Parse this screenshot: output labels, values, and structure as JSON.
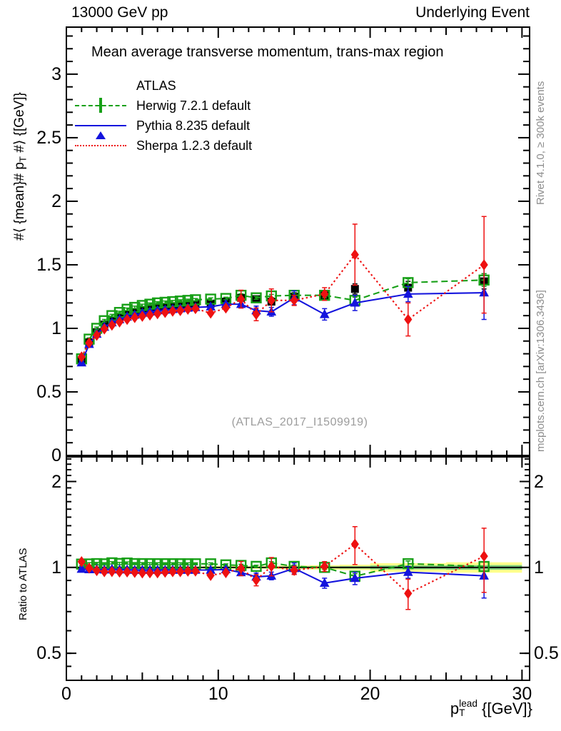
{
  "header": {
    "left": "13000 GeV pp",
    "right": "Underlying Event"
  },
  "panel_title": "Mean average transverse momentum, trans-max region",
  "watermark": "(ATLAS_2017_I1509919)",
  "side_notes": {
    "top_right": "Rivet 4.1.0, ≥ 300k events",
    "bottom_right": "mcplots.cern.ch [arXiv:1306.3436]"
  },
  "axis_labels": {
    "y_main": {
      "prefix": "#⟨ {mean}# p",
      "sub": "T",
      "suffix": " #⟩ {[GeV]}"
    },
    "y_ratio": "Ratio to ATLAS",
    "x": {
      "base": "p",
      "sup": "lead",
      "sub": "T",
      "suffix": " {[GeV]}"
    }
  },
  "legend": {
    "items": [
      {
        "label": "ATLAS",
        "color": "#000000",
        "marker": "square-filled",
        "line": "none"
      },
      {
        "label": "Herwig 7.2.1 default",
        "color": "#18a018",
        "marker": "square-open",
        "line": "dashed"
      },
      {
        "label": "Pythia 8.235 default",
        "color": "#1414dd",
        "marker": "triangle-filled",
        "line": "solid"
      },
      {
        "label": "Sherpa 1.2.3 default",
        "color": "#ee1111",
        "marker": "diamond-filled",
        "line": "dotted"
      }
    ]
  },
  "chart_data": {
    "type": "line",
    "title": "Mean average transverse momentum, trans-max region",
    "xlabel": "pT^lead [GeV]",
    "ylabel_main": "<mean pT> [GeV]",
    "ylabel_ratio": "Ratio to ATLAS",
    "x_axis": {
      "min": 0,
      "max": 30.5,
      "major_ticks": [
        0,
        10,
        20,
        30
      ],
      "medium_ticks": [
        5,
        15,
        25
      ],
      "minor_step": 1
    },
    "main_axis": {
      "min": 0,
      "max": 3.37,
      "major_ticks": [
        3,
        2.5,
        2,
        1.5,
        1,
        0.5,
        0
      ],
      "minor_step": 0.1,
      "scale": "linear"
    },
    "ratio_axis": {
      "min": 0.402,
      "max": 2.44,
      "major_ticks": [
        2,
        1,
        0.5
      ],
      "minor_ticks": [
        0.45,
        0.5,
        0.6,
        0.7,
        0.8,
        0.9,
        1.1,
        1.2,
        1.3,
        1.4,
        1.5,
        1.6,
        1.7,
        1.8,
        1.9,
        2.1,
        2.2,
        2.3,
        2.4
      ],
      "scale": "log"
    },
    "x": [
      1,
      1.5,
      2,
      2.5,
      3,
      3.5,
      4,
      4.5,
      5,
      5.5,
      6,
      6.5,
      7,
      7.5,
      8,
      8.5,
      9.5,
      10.5,
      11.5,
      12.5,
      13.5,
      15,
      17,
      19,
      22.5,
      27.5
    ],
    "bin_edges": [
      0.75,
      1.25,
      1.75,
      2.25,
      2.75,
      3.25,
      3.75,
      4.25,
      4.75,
      5.25,
      5.75,
      6.25,
      6.75,
      7.25,
      7.75,
      8.25,
      9,
      10,
      11,
      12,
      13,
      14,
      16,
      18,
      20,
      25,
      30
    ],
    "series": [
      {
        "name": "ATLAS",
        "color": "#000000",
        "marker": "square-filled",
        "line": "none",
        "values": [
          0.74,
          0.89,
          0.97,
          1.03,
          1.06,
          1.09,
          1.11,
          1.13,
          1.145,
          1.155,
          1.165,
          1.17,
          1.175,
          1.18,
          1.185,
          1.19,
          1.195,
          1.21,
          1.24,
          1.23,
          1.21,
          1.25,
          1.26,
          1.31,
          1.32,
          1.37
        ],
        "errors": [
          0.02,
          0.02,
          0.02,
          0.02,
          0.02,
          0.02,
          0.02,
          0.02,
          0.02,
          0.02,
          0.02,
          0.02,
          0.02,
          0.02,
          0.02,
          0.02,
          0.02,
          0.02,
          0.025,
          0.025,
          0.025,
          0.03,
          0.03,
          0.04,
          0.05,
          0.06
        ]
      },
      {
        "name": "Herwig 7.2.1 default",
        "color": "#18a018",
        "marker": "square-open",
        "line": "dashed",
        "values": [
          0.76,
          0.915,
          1.0,
          1.06,
          1.1,
          1.125,
          1.15,
          1.165,
          1.18,
          1.19,
          1.2,
          1.205,
          1.21,
          1.215,
          1.22,
          1.225,
          1.23,
          1.235,
          1.26,
          1.24,
          1.255,
          1.26,
          1.26,
          1.22,
          1.36,
          1.38
        ],
        "errors": [
          0.01,
          0.01,
          0.01,
          0.01,
          0.01,
          0.01,
          0.01,
          0.01,
          0.01,
          0.01,
          0.01,
          0.01,
          0.01,
          0.01,
          0.01,
          0.01,
          0.01,
          0.01,
          0.012,
          0.012,
          0.012,
          0.015,
          0.02,
          0.025,
          0.03,
          0.05
        ]
      },
      {
        "name": "Pythia 8.235 default",
        "color": "#1414dd",
        "marker": "triangle-filled",
        "line": "solid",
        "values": [
          0.73,
          0.875,
          0.955,
          1.01,
          1.045,
          1.07,
          1.09,
          1.105,
          1.12,
          1.13,
          1.14,
          1.145,
          1.15,
          1.155,
          1.16,
          1.165,
          1.17,
          1.19,
          1.19,
          1.14,
          1.13,
          1.24,
          1.11,
          1.2,
          1.27,
          1.28
        ],
        "errors": [
          0.012,
          0.012,
          0.012,
          0.012,
          0.012,
          0.012,
          0.012,
          0.012,
          0.012,
          0.012,
          0.012,
          0.012,
          0.012,
          0.012,
          0.012,
          0.012,
          0.012,
          0.012,
          0.03,
          0.035,
          0.035,
          0.055,
          0.045,
          0.06,
          0.06,
          0.21
        ]
      },
      {
        "name": "Sherpa 1.2.3 default",
        "color": "#ee1111",
        "marker": "diamond-filled",
        "line": "dotted",
        "values": [
          0.775,
          0.885,
          0.945,
          0.995,
          1.025,
          1.05,
          1.07,
          1.085,
          1.095,
          1.105,
          1.115,
          1.125,
          1.135,
          1.14,
          1.15,
          1.155,
          1.12,
          1.16,
          1.23,
          1.11,
          1.22,
          1.22,
          1.27,
          1.58,
          1.07,
          1.5
        ],
        "errors": [
          0.012,
          0.012,
          0.012,
          0.012,
          0.012,
          0.012,
          0.012,
          0.012,
          0.012,
          0.012,
          0.012,
          0.012,
          0.012,
          0.012,
          0.012,
          0.012,
          0.012,
          0.012,
          0.07,
          0.05,
          0.09,
          0.04,
          0.05,
          0.24,
          0.13,
          0.38
        ]
      }
    ],
    "data_band": {
      "yellow_color": "#ffff8c",
      "green_color": "#7fce7f",
      "green_fraction": 0.45,
      "rel_width": [
        0.008,
        0.008,
        0.008,
        0.008,
        0.008,
        0.008,
        0.008,
        0.008,
        0.008,
        0.008,
        0.008,
        0.008,
        0.008,
        0.008,
        0.008,
        0.008,
        0.012,
        0.012,
        0.012,
        0.012,
        0.012,
        0.015,
        0.018,
        0.022,
        0.035,
        0.042
      ]
    }
  }
}
